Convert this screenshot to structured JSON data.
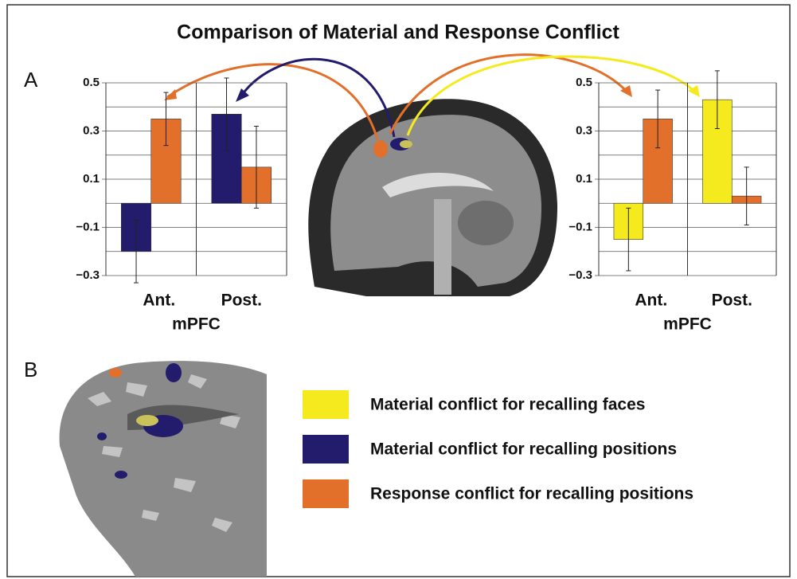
{
  "title": "Comparison of Material and Response Conflict",
  "panel_labels": [
    "A",
    "B"
  ],
  "legend": [
    {
      "label": "Material conflict for recalling faces",
      "color": "#f5ea1e"
    },
    {
      "label": "Material conflict for recalling positions",
      "color": "#231b6b"
    },
    {
      "label": "Response conflict for recalling positions",
      "color": "#e2702a"
    }
  ],
  "chart_data": [
    {
      "type": "bar",
      "categories": [
        "Ant.",
        "Post."
      ],
      "xlabel": "mPFC",
      "series": [
        {
          "color": "#231b6b",
          "values": [
            -0.2,
            0.37
          ],
          "errors": [
            0.13,
            0.15
          ]
        },
        {
          "color": "#e2702a",
          "values": [
            0.35,
            0.15
          ],
          "errors": [
            0.11,
            0.17
          ]
        }
      ],
      "ylim": [
        -0.3,
        0.5
      ],
      "yticks": [
        0.5,
        0.3,
        0.1,
        {
          "value": -0.1,
          "label": "−0.1"
        },
        {
          "value": -0.3,
          "label": "−0.3"
        }
      ],
      "minor_yticks": [
        0.4,
        0.2,
        0,
        -0.2
      ],
      "grid": true
    },
    {
      "type": "bar",
      "categories": [
        "Ant.",
        "Post."
      ],
      "xlabel": "mPFC",
      "series": [
        {
          "color": "#f5ea1e",
          "values": [
            -0.15,
            0.43
          ],
          "errors": [
            0.13,
            0.12
          ]
        },
        {
          "color": "#e2702a",
          "values": [
            0.35,
            0.03
          ],
          "errors": [
            0.12,
            0.12
          ]
        }
      ],
      "ylim": [
        -0.3,
        0.5
      ],
      "yticks": [
        0.5,
        0.3,
        0.1,
        {
          "value": -0.1,
          "label": "−0.1"
        },
        {
          "value": -0.3,
          "label": "−0.3"
        }
      ],
      "minor_yticks": [
        0.4,
        0.2,
        0,
        -0.2
      ],
      "grid": true
    }
  ]
}
